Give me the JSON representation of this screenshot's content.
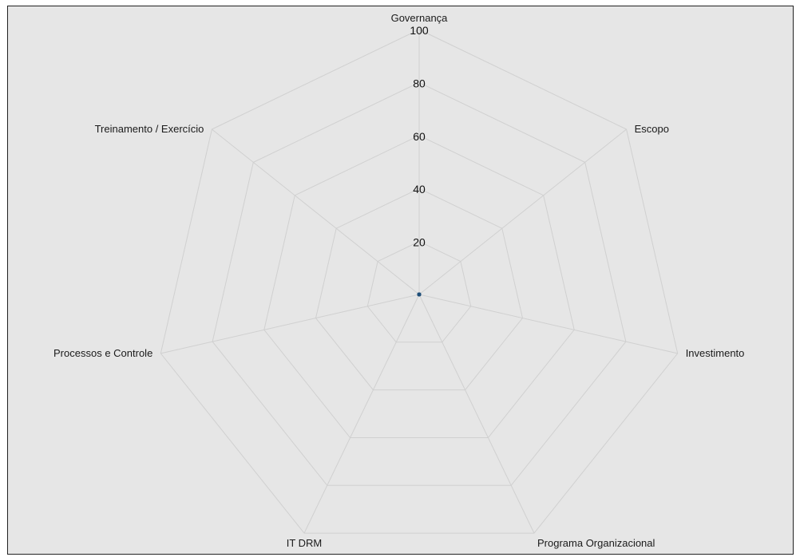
{
  "chart_data": {
    "type": "radar",
    "title": "",
    "axes": [
      "Governança",
      "Escopo",
      "Investimento",
      "Programa Organizacional",
      "IT DRM",
      "Processos e Controle",
      "Treinamento / Exercício"
    ],
    "rlim": [
      0,
      100
    ],
    "ticks": [
      "20",
      "40",
      "60",
      "80",
      "100"
    ],
    "series": [
      {
        "values": [
          0,
          0,
          0,
          0,
          0,
          0,
          0
        ],
        "color": "#1f4e79"
      }
    ],
    "grid": true
  },
  "colors": {
    "background": "#e6e6e6",
    "grid": "#d0d0d0",
    "border": "#222222",
    "point": "#1f4e79"
  }
}
